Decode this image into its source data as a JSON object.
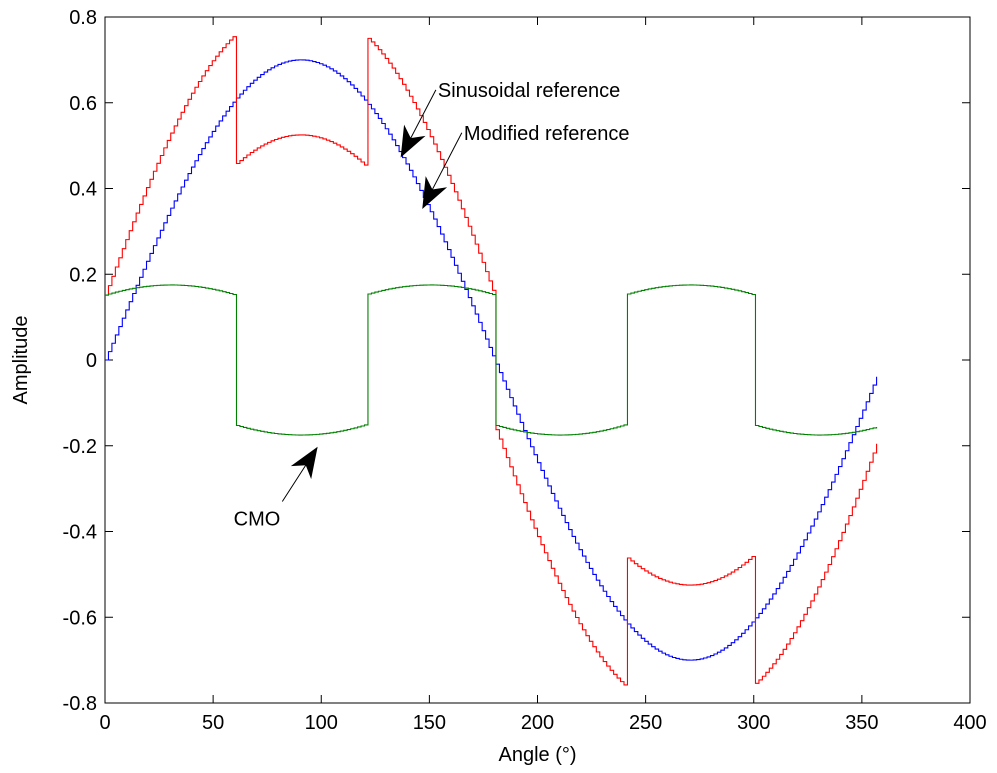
{
  "chart_data": {
    "type": "line",
    "title": "",
    "xlabel": "Angle (°)",
    "ylabel": "Amplitude",
    "xlim": [
      0,
      400
    ],
    "ylim": [
      -0.8,
      0.8
    ],
    "xticks": [
      0,
      50,
      100,
      150,
      200,
      250,
      300,
      350,
      400
    ],
    "yticks": [
      -0.8,
      -0.6,
      -0.4,
      -0.2,
      0,
      0.2,
      0.4,
      0.6,
      0.8
    ],
    "xtick_labels": [
      "0",
      "50",
      "100",
      "150",
      "200",
      "250",
      "300",
      "350",
      "400"
    ],
    "ytick_labels": [
      "-0.8",
      "-0.6",
      "-0.4",
      "-0.2",
      "0",
      "0.2",
      "0.4",
      "0.6",
      "0.8"
    ],
    "grid": false,
    "x_range": [
      0,
      357
    ],
    "series": [
      {
        "name": "Sinusoidal reference",
        "color": "#0000ff",
        "amplitude": 0.7,
        "x": [
          0,
          30,
          60,
          90,
          120,
          150,
          180,
          210,
          240,
          270,
          300,
          330,
          357
        ],
        "values": [
          0,
          0.35,
          0.606,
          0.7,
          0.606,
          0.35,
          0,
          -0.35,
          -0.606,
          -0.7,
          -0.606,
          -0.35,
          -0.012
        ]
      },
      {
        "name": "Modified reference",
        "color": "#ff0000",
        "x": [
          0,
          30,
          59.9,
          60,
          90,
          119.9,
          120,
          150,
          179.9,
          180,
          210,
          239.9,
          240,
          270,
          299.9,
          300,
          330,
          357
        ],
        "values": [
          0.152,
          0.525,
          0.757,
          0.454,
          0.525,
          0.454,
          0.757,
          0.525,
          0.152,
          -0.152,
          -0.525,
          -0.757,
          -0.454,
          -0.525,
          -0.454,
          -0.757,
          -0.525,
          -0.164
        ]
      },
      {
        "name": "CMO",
        "color": "#008000",
        "x": [
          0,
          30,
          59.9,
          60,
          90,
          119.9,
          120,
          150,
          179.9,
          180,
          210,
          239.9,
          240,
          270,
          299.9,
          300,
          330,
          357
        ],
        "values": [
          0.152,
          0.175,
          0.152,
          -0.152,
          -0.175,
          -0.152,
          0.152,
          0.175,
          0.152,
          -0.152,
          -0.175,
          -0.152,
          0.152,
          0.175,
          0.152,
          -0.152,
          -0.175,
          -0.152
        ]
      }
    ],
    "annotations": [
      {
        "text": "Sinusoidal reference",
        "label_at": [
          153,
          0.63
        ],
        "arrow_from": [
          153,
          0.63
        ],
        "arrow_to": [
          137,
          0.475
        ],
        "anchor": "start"
      },
      {
        "text": "Modified reference",
        "label_at": [
          165,
          0.53
        ],
        "arrow_from": [
          165,
          0.53
        ],
        "arrow_to": [
          147,
          0.355
        ],
        "anchor": "start"
      },
      {
        "text": "CMO",
        "label_at": [
          82,
          -0.37
        ],
        "arrow_from": [
          82,
          -0.33
        ],
        "arrow_to": [
          98,
          -0.205
        ],
        "anchor": "end"
      }
    ]
  }
}
